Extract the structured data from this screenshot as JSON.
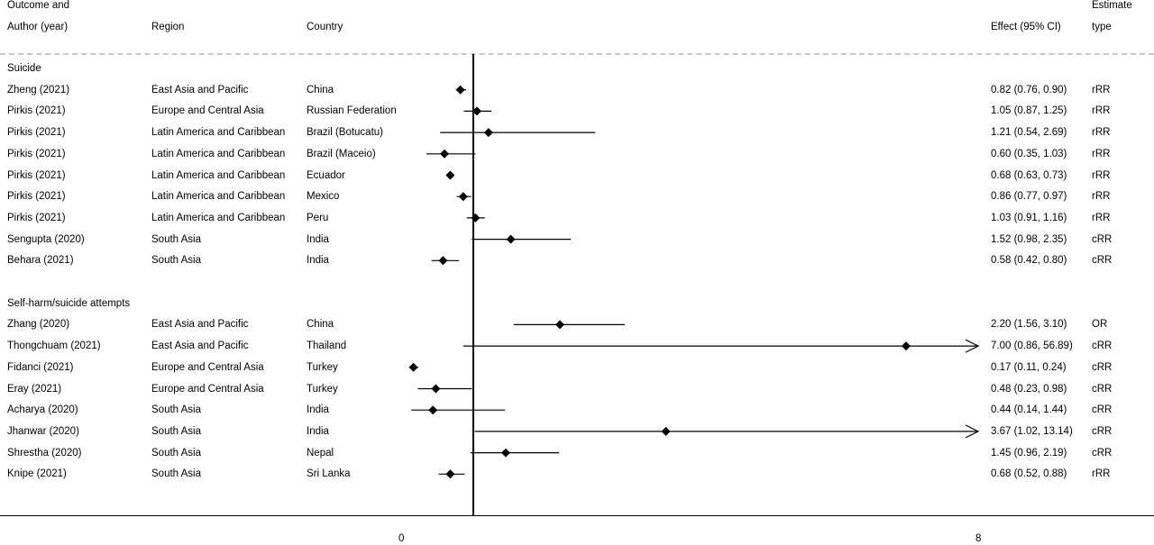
{
  "headers": {
    "outcome_line1": "Outcome and",
    "outcome_line2": "Author (year)",
    "region": "Region",
    "country": "Country",
    "effect": "Effect (95% CI)",
    "estimate_line1": "Estimate",
    "estimate_line2": "type"
  },
  "chart_data": {
    "type": "forest",
    "xlim": [
      0,
      8
    ],
    "null_line": 1,
    "x_ticks": [
      "0",
      "8"
    ],
    "groups": [
      {
        "label": "Suicide",
        "rows": [
          {
            "author": "Zheng (2021)",
            "region": "East Asia and Pacific",
            "country": "China",
            "est": 0.82,
            "lo": 0.76,
            "hi": 0.9,
            "effect": "0.82 (0.76, 0.90)",
            "type": "rRR"
          },
          {
            "author": "Pirkis (2021)",
            "region": "Europe and Central Asia",
            "country": "Russian Federation",
            "est": 1.05,
            "lo": 0.87,
            "hi": 1.25,
            "effect": "1.05 (0.87, 1.25)",
            "type": "rRR"
          },
          {
            "author": "Pirkis (2021)",
            "region": "Latin America and Caribbean",
            "country": "Brazil (Botucatu)",
            "est": 1.21,
            "lo": 0.54,
            "hi": 2.69,
            "effect": "1.21 (0.54, 2.69)",
            "type": "rRR"
          },
          {
            "author": "Pirkis (2021)",
            "region": "Latin America and Caribbean",
            "country": "Brazil (Maceio)",
            "est": 0.6,
            "lo": 0.35,
            "hi": 1.03,
            "effect": "0.60 (0.35, 1.03)",
            "type": "rRR"
          },
          {
            "author": "Pirkis (2021)",
            "region": "Latin America and Caribbean",
            "country": "Ecuador",
            "est": 0.68,
            "lo": 0.63,
            "hi": 0.73,
            "effect": "0.68 (0.63, 0.73)",
            "type": "rRR"
          },
          {
            "author": "Pirkis (2021)",
            "region": "Latin America and Caribbean",
            "country": "Mexico",
            "est": 0.86,
            "lo": 0.77,
            "hi": 0.97,
            "effect": "0.86 (0.77, 0.97)",
            "type": "rRR"
          },
          {
            "author": "Pirkis (2021)",
            "region": "Latin America and Caribbean",
            "country": "Peru",
            "est": 1.03,
            "lo": 0.91,
            "hi": 1.16,
            "effect": "1.03 (0.91, 1.16)",
            "type": "rRR"
          },
          {
            "author": "Sengupta (2020)",
            "region": "South Asia",
            "country": "India",
            "est": 1.52,
            "lo": 0.98,
            "hi": 2.35,
            "effect": "1.52 (0.98, 2.35)",
            "type": "cRR"
          },
          {
            "author": "Behara (2021)",
            "region": "South Asia",
            "country": "India",
            "est": 0.58,
            "lo": 0.42,
            "hi": 0.8,
            "effect": "0.58 (0.42, 0.80)",
            "type": "cRR"
          }
        ]
      },
      {
        "label": "Self-harm/suicide attempts",
        "rows": [
          {
            "author": "Zhang (2020)",
            "region": "East Asia and Pacific",
            "country": "China",
            "est": 2.2,
            "lo": 1.56,
            "hi": 3.1,
            "effect": "2.20 (1.56, 3.10)",
            "type": "OR"
          },
          {
            "author": "Thongchuam (2021)",
            "region": "East Asia and Pacific",
            "country": "Thailand",
            "est": 7.0,
            "lo": 0.86,
            "hi": 56.89,
            "effect": "7.00 (0.86, 56.89)",
            "type": "cRR"
          },
          {
            "author": "Fidanci (2021)",
            "region": "Europe and Central Asia",
            "country": "Turkey",
            "est": 0.17,
            "lo": 0.11,
            "hi": 0.24,
            "effect": "0.17 (0.11, 0.24)",
            "type": "cRR"
          },
          {
            "author": "Eray (2021)",
            "region": "Europe and Central Asia",
            "country": "Turkey",
            "est": 0.48,
            "lo": 0.23,
            "hi": 0.98,
            "effect": "0.48 (0.23, 0.98)",
            "type": "cRR"
          },
          {
            "author": "Acharya (2020)",
            "region": "South Asia",
            "country": "India",
            "est": 0.44,
            "lo": 0.14,
            "hi": 1.44,
            "effect": "0.44 (0.14, 1.44)",
            "type": "cRR"
          },
          {
            "author": "Jhanwar (2020)",
            "region": "South Asia",
            "country": "India",
            "est": 3.67,
            "lo": 1.02,
            "hi": 13.14,
            "effect": "3.67 (1.02, 13.14)",
            "type": "cRR"
          },
          {
            "author": "Shrestha (2020)",
            "region": "South Asia",
            "country": "Nepal",
            "est": 1.45,
            "lo": 0.96,
            "hi": 2.19,
            "effect": "1.45 (0.96, 2.19)",
            "type": "cRR"
          },
          {
            "author": "Knipe (2021)",
            "region": "South Asia",
            "country": "Sri Lanka",
            "est": 0.68,
            "lo": 0.52,
            "hi": 0.88,
            "effect": "0.68 (0.52, 0.88)",
            "type": "rRR"
          }
        ]
      }
    ]
  }
}
